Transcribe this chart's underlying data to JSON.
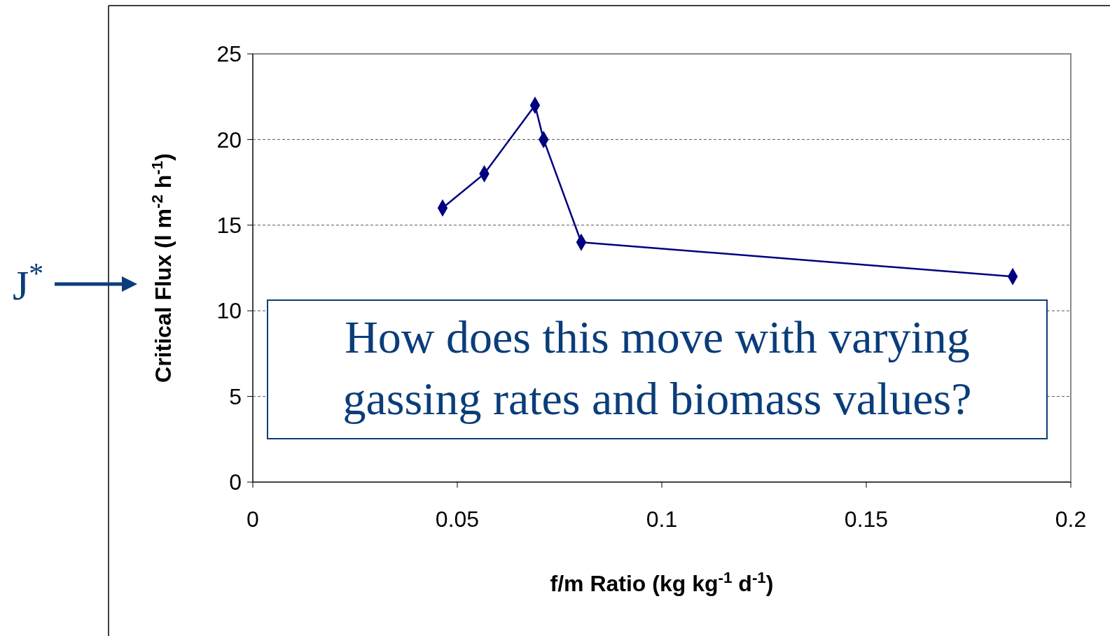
{
  "chart_data": {
    "type": "line",
    "xlabel": "f/m Ratio (kg kg$^{-1}$ d$^{-1}$)",
    "ylabel": "Critical Flux (l m$^{-2}$ h$^{-1}$)",
    "x": [
      0.0464,
      0.0566,
      0.069,
      0.0711,
      0.0803,
      0.1858
    ],
    "series": [
      {
        "color": "#000080",
        "values": [
          16,
          18,
          22,
          20,
          14,
          12
        ]
      }
    ],
    "xlim": [
      0,
      0.2
    ],
    "xticks": [
      0,
      0.05,
      0.1,
      0.15,
      0.2
    ],
    "ylim": [
      0,
      25
    ],
    "yticks": [
      0,
      5,
      10,
      15,
      20,
      25
    ],
    "grid": "y",
    "marker": "diamond",
    "line_style": "solid",
    "annotations": [
      "J$^{*}$",
      "How does this move with varying gassing rates and biomass values?"
    ]
  }
}
